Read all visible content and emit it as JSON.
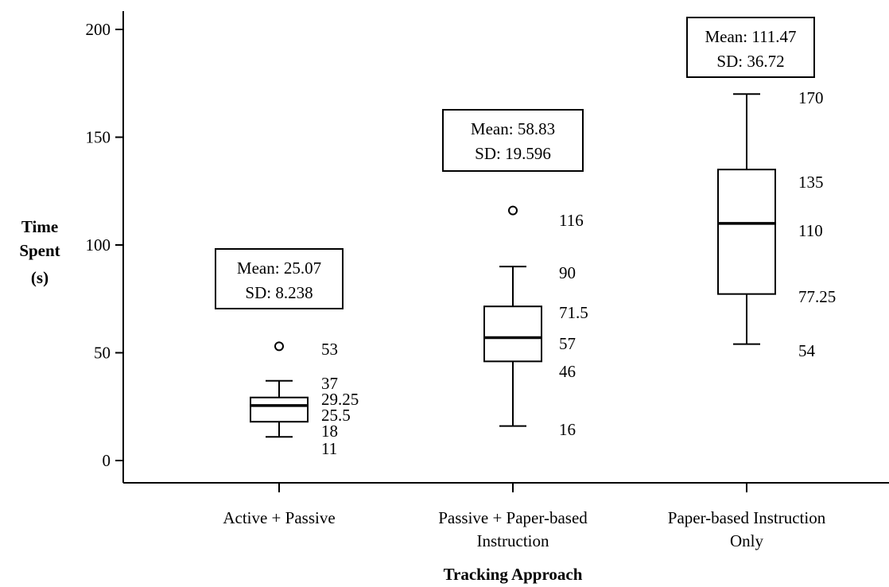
{
  "chart_data": {
    "type": "boxplot",
    "xlabel": "Tracking Approach",
    "ylabel_lines": [
      "Time",
      "Spent",
      "(s)"
    ],
    "ylim": [
      0,
      200
    ],
    "yticks": [
      0,
      50,
      100,
      150,
      200
    ],
    "categories": [
      {
        "label_lines": [
          "Active + Passive"
        ],
        "whisker_low": 11,
        "q1": 18,
        "median": 25.5,
        "q3": 29.25,
        "whisker_high": 37,
        "outliers": [
          53
        ],
        "stats": {
          "mean": "Mean: 25.07",
          "sd": "SD: 8.238"
        },
        "value_labels": [
          "53",
          "37",
          "29.25",
          "25.5",
          "18",
          "11"
        ]
      },
      {
        "label_lines": [
          "Passive + Paper-based",
          "Instruction"
        ],
        "whisker_low": 16,
        "q1": 46,
        "median": 57,
        "q3": 71.5,
        "whisker_high": 90,
        "outliers": [
          116
        ],
        "stats": {
          "mean": "Mean: 58.83",
          "sd": "SD: 19.596"
        },
        "value_labels": [
          "116",
          "90",
          "71.5",
          "57",
          "46",
          "16"
        ]
      },
      {
        "label_lines": [
          "Paper-based Instruction",
          "Only"
        ],
        "whisker_low": 54,
        "q1": 77.25,
        "median": 110,
        "q3": 135,
        "whisker_high": 170,
        "outliers": [],
        "stats": {
          "mean": "Mean: 111.47",
          "sd": "SD: 36.72"
        },
        "value_labels": [
          "170",
          "135",
          "110",
          "77.25",
          "54"
        ]
      }
    ],
    "grid": false,
    "legend": "none"
  }
}
